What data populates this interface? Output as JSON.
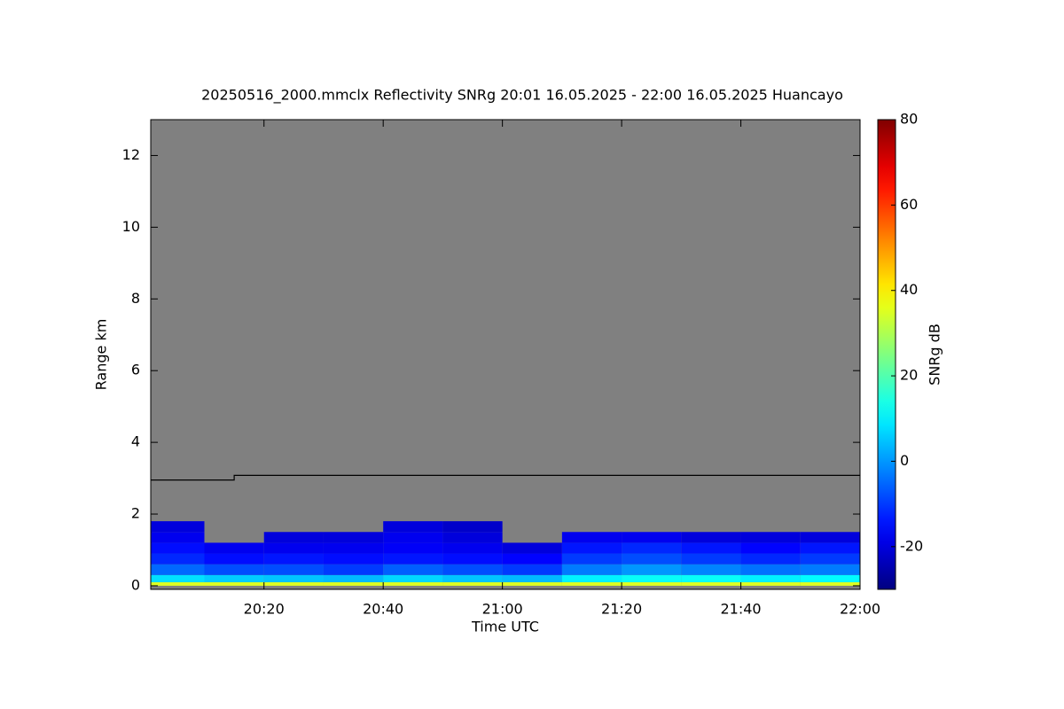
{
  "chart_data": {
    "type": "heatmap",
    "title": "20250516_2000.mmclx Reflectivity SNRg   20:01 16.05.2025 - 22:00 16.05.2025 Huancayo",
    "x_label": "Time UTC",
    "y_label": "Range km",
    "colorbar_label": "SNRg dB",
    "xlim": [
      "20:01",
      "22:00"
    ],
    "xticks": [
      "20:20",
      "20:40",
      "21:00",
      "21:20",
      "21:40",
      "22:00"
    ],
    "ylim": [
      -0.1,
      13
    ],
    "yticks": [
      0,
      2,
      4,
      6,
      8,
      10,
      12
    ],
    "clim": [
      -30,
      80
    ],
    "cticks": [
      -20,
      0,
      20,
      40,
      60,
      80
    ],
    "colormap": "jet",
    "background": "#808080",
    "x_edges": [
      "20:01",
      "20:10",
      "20:20",
      "20:30",
      "20:40",
      "20:50",
      "21:00",
      "21:10",
      "21:20",
      "21:30",
      "21:40",
      "21:50",
      "22:00"
    ],
    "y_edges": [
      0,
      0.1,
      0.3,
      0.6,
      0.9,
      1.2,
      1.5,
      1.8
    ],
    "z": [
      [
        35,
        35,
        35,
        35,
        35,
        35,
        35,
        35,
        35,
        35,
        35,
        35
      ],
      [
        8,
        6,
        5,
        4,
        7,
        5,
        4,
        10,
        12,
        12,
        10,
        11
      ],
      [
        -5,
        -8,
        -8,
        -10,
        -6,
        -8,
        -10,
        -3,
        0,
        -2,
        -4,
        -3
      ],
      [
        -12,
        -15,
        -14,
        -15,
        -14,
        -15,
        -16,
        -10,
        -8,
        -10,
        -12,
        -10
      ],
      [
        -15,
        -18,
        -18,
        -18,
        -17,
        -18,
        -20,
        -14,
        -12,
        -14,
        -16,
        -14
      ],
      [
        -18,
        null,
        -20,
        -20,
        -18,
        -20,
        null,
        -18,
        -18,
        -20,
        -20,
        -20
      ],
      [
        -20,
        null,
        null,
        null,
        -20,
        -22,
        null,
        null,
        null,
        null,
        null,
        null
      ]
    ],
    "line": {
      "x": [
        "20:01",
        "20:15",
        "20:15",
        "22:00"
      ],
      "y": [
        2.95,
        2.95,
        3.08,
        3.08
      ],
      "color": "#000000"
    }
  }
}
